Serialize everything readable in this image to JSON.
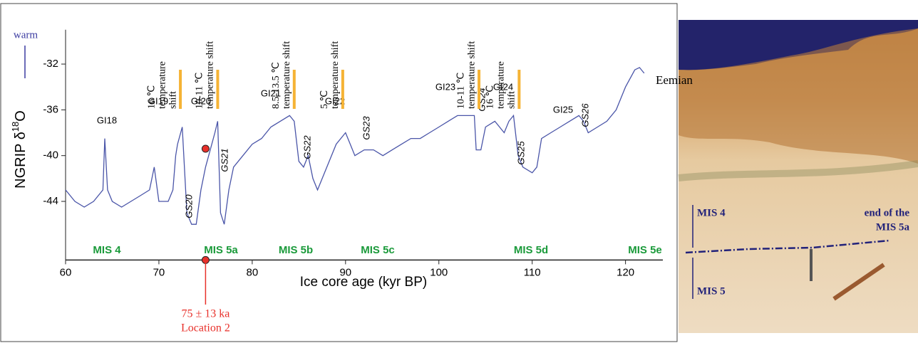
{
  "chart_data": {
    "type": "line",
    "y_label": {
      "prefix": "NGRIP δ",
      "sup": "18",
      "suffix": "O"
    },
    "x_label": "Ice core age (kyr BP)",
    "warm_label": "warm",
    "end_label": "Eemian",
    "color": "#4a55a8",
    "xlim": [
      60,
      124
    ],
    "xticks": [
      60,
      70,
      80,
      90,
      100,
      110,
      120
    ],
    "ylim": [
      -49,
      -29
    ],
    "yticks": [
      -32,
      -36,
      -40,
      -44
    ],
    "x": [
      60,
      61,
      62,
      63,
      64,
      64.2,
      64.5,
      65,
      66,
      67,
      68,
      69,
      69.5,
      70,
      71,
      71.5,
      71.8,
      72,
      72.5,
      73,
      73.5,
      74,
      74.5,
      75,
      75.5,
      76,
      76.3,
      76.6,
      77,
      77.5,
      78,
      79,
      80,
      81,
      82,
      83,
      84,
      84.5,
      85,
      85.5,
      86,
      86.5,
      87,
      88,
      89,
      90,
      90.5,
      91,
      92,
      93,
      94,
      95,
      96,
      97,
      98,
      99,
      100,
      101,
      102,
      103,
      103.8,
      104,
      104.5,
      105,
      106,
      107,
      107.5,
      108,
      108.5,
      109,
      110,
      110.5,
      111,
      112,
      113,
      114,
      115,
      115.5,
      116,
      117,
      118,
      119,
      120,
      121,
      121.5,
      122
    ],
    "values": [
      -43,
      -44,
      -44.5,
      -44,
      -43,
      -38.5,
      -43,
      -44,
      -44.5,
      -44,
      -43.5,
      -43,
      -41,
      -44,
      -44,
      -43,
      -40,
      -39,
      -37.5,
      -45,
      -46,
      -46,
      -43,
      -41,
      -39.5,
      -38,
      -37,
      -45,
      -46,
      -43,
      -41,
      -40,
      -39,
      -38.5,
      -37.5,
      -37,
      -36.5,
      -37,
      -40.5,
      -41,
      -40,
      -42,
      -43,
      -41,
      -39,
      -38,
      -39,
      -40,
      -39.5,
      -39.5,
      -40,
      -39.5,
      -39,
      -38.5,
      -38.5,
      -38,
      -37.5,
      -37,
      -36.5,
      -36.5,
      -36.5,
      -39.5,
      -39.5,
      -37.5,
      -37,
      -38,
      -37,
      -36.5,
      -40,
      -41,
      -41.5,
      -41,
      -38.5,
      -38,
      -37.5,
      -37,
      -36.5,
      -37,
      -38,
      -37.5,
      -37,
      -36,
      -34,
      -32.5,
      -32.3,
      -32.8
    ],
    "sample": {
      "x": 75,
      "value": -39.4,
      "label": "75 ± 13 ka",
      "location": "Location 2",
      "color": "#e8302a"
    },
    "interstadials": [
      "GI18",
      "GI19",
      "GI20",
      "GI21",
      "GI22",
      "GI23",
      "GI24",
      "GI25"
    ],
    "stadials": [
      "GS20",
      "GS21",
      "GS22",
      "GS23",
      "GS24",
      "GS25",
      "GS26"
    ],
    "stages": [
      "MIS 4",
      "MIS 5a",
      "MIS 5b",
      "MIS 5c",
      "MIS 5d",
      "MIS 5e"
    ],
    "stage_color": "#1a9a3a",
    "shift_color": "#f5b335",
    "temperature_shifts": [
      {
        "x": 72.3,
        "lines": [
          "16 ℃",
          "temperature",
          "shift"
        ]
      },
      {
        "x": 76.3,
        "lines": [
          "10-11 ℃",
          "temperature shift"
        ]
      },
      {
        "x": 84.5,
        "lines": [
          "8.5-13.5 ℃",
          "temperature shift"
        ]
      },
      {
        "x": 89.7,
        "lines": [
          "5 ℃",
          "temperature shift"
        ]
      },
      {
        "x": 104.3,
        "lines": [
          "10-11 ℃",
          "temperature shift"
        ]
      },
      {
        "x": 108.6,
        "lines": [
          "16 ℃",
          "temperature",
          "shift"
        ]
      }
    ]
  },
  "photo": {
    "upper": "MIS 4",
    "boundary": [
      "end of the",
      "MIS 5a"
    ],
    "lower": "MIS 5"
  }
}
